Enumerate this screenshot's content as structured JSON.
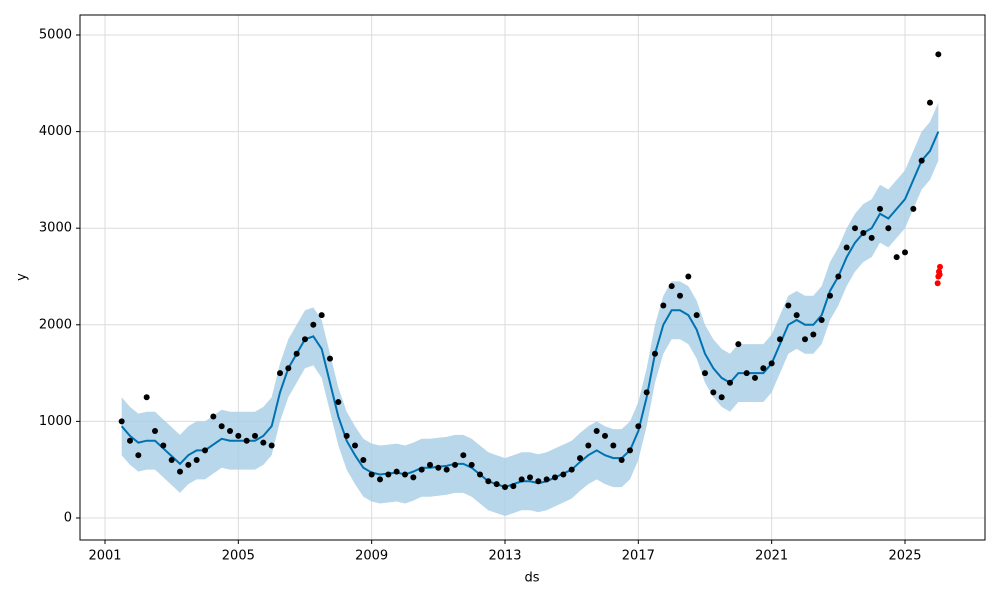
{
  "chart_data": {
    "type": "line",
    "x_label": "ds",
    "y_label": "y",
    "xlim": [
      2000.25,
      2027.4
    ],
    "ylim": [
      -228,
      5207
    ],
    "xticks": [
      2001,
      2005,
      2009,
      2013,
      2017,
      2021,
      2025
    ],
    "yticks": [
      0,
      1000,
      2000,
      3000,
      4000,
      5000
    ],
    "grid": true,
    "x": [
      2001.5,
      2001.75,
      2002,
      2002.25,
      2002.5,
      2002.75,
      2003,
      2003.25,
      2003.5,
      2003.75,
      2004,
      2004.25,
      2004.5,
      2004.75,
      2005,
      2005.25,
      2005.5,
      2005.75,
      2006,
      2006.25,
      2006.5,
      2006.75,
      2007,
      2007.25,
      2007.5,
      2007.75,
      2008,
      2008.25,
      2008.5,
      2008.75,
      2009,
      2009.25,
      2009.5,
      2009.75,
      2010,
      2010.25,
      2010.5,
      2010.75,
      2011,
      2011.25,
      2011.5,
      2011.75,
      2012,
      2012.25,
      2012.5,
      2012.75,
      2013,
      2013.25,
      2013.5,
      2013.75,
      2014,
      2014.25,
      2014.5,
      2014.75,
      2015,
      2015.25,
      2015.5,
      2015.75,
      2016,
      2016.25,
      2016.5,
      2016.75,
      2017,
      2017.25,
      2017.5,
      2017.75,
      2018,
      2018.25,
      2018.5,
      2018.75,
      2019,
      2019.25,
      2019.5,
      2019.75,
      2020,
      2020.25,
      2020.5,
      2020.75,
      2021,
      2021.25,
      2021.5,
      2021.75,
      2022,
      2022.25,
      2022.5,
      2022.75,
      2023,
      2023.25,
      2023.5,
      2023.75,
      2024,
      2024.25,
      2024.5,
      2024.75,
      2025,
      2025.25,
      2025.5,
      2025.75,
      2026
    ],
    "series": [
      {
        "style": "band",
        "color": "#a8cde6",
        "lower": [
          650,
          550,
          480,
          500,
          500,
          420,
          340,
          260,
          350,
          400,
          400,
          460,
          520,
          500,
          500,
          500,
          500,
          550,
          650,
          1000,
          1250,
          1400,
          1550,
          1580,
          1450,
          1100,
          750,
          500,
          350,
          220,
          170,
          150,
          160,
          170,
          150,
          180,
          220,
          220,
          230,
          240,
          260,
          260,
          220,
          150,
          80,
          50,
          20,
          50,
          80,
          80,
          60,
          80,
          120,
          160,
          200,
          280,
          350,
          400,
          350,
          320,
          320,
          400,
          600,
          950,
          1400,
          1700,
          1850,
          1850,
          1800,
          1650,
          1400,
          1250,
          1150,
          1100,
          1200,
          1200,
          1200,
          1200,
          1300,
          1500,
          1700,
          1750,
          1700,
          1700,
          1800,
          2050,
          2200,
          2400,
          2550,
          2650,
          2700,
          2850,
          2800,
          2900,
          3000,
          3200,
          3400,
          3500,
          3700
        ],
        "upper": [
          1250,
          1150,
          1080,
          1100,
          1100,
          1020,
          940,
          860,
          950,
          1000,
          1000,
          1060,
          1120,
          1100,
          1100,
          1100,
          1100,
          1150,
          1250,
          1600,
          1850,
          2000,
          2150,
          2180,
          2050,
          1700,
          1350,
          1100,
          950,
          820,
          770,
          750,
          760,
          770,
          750,
          780,
          820,
          820,
          830,
          840,
          860,
          860,
          820,
          750,
          680,
          650,
          620,
          650,
          680,
          680,
          660,
          680,
          720,
          760,
          800,
          880,
          950,
          1000,
          950,
          920,
          920,
          1000,
          1200,
          1550,
          2000,
          2300,
          2450,
          2450,
          2400,
          2250,
          2000,
          1850,
          1750,
          1700,
          1800,
          1800,
          1800,
          1800,
          1900,
          2100,
          2300,
          2350,
          2300,
          2300,
          2400,
          2650,
          2800,
          3000,
          3150,
          3250,
          3300,
          3450,
          3400,
          3500,
          3600,
          3800,
          4000,
          4100,
          4300
        ]
      },
      {
        "style": "line",
        "color": "#0072B2",
        "values": [
          950,
          850,
          780,
          800,
          800,
          720,
          640,
          560,
          650,
          700,
          700,
          760,
          820,
          800,
          800,
          800,
          800,
          850,
          950,
          1300,
          1550,
          1700,
          1850,
          1880,
          1750,
          1400,
          1050,
          800,
          650,
          520,
          470,
          450,
          460,
          470,
          450,
          480,
          520,
          520,
          530,
          540,
          560,
          560,
          520,
          450,
          380,
          350,
          320,
          350,
          380,
          380,
          360,
          380,
          420,
          460,
          500,
          580,
          650,
          700,
          650,
          620,
          620,
          700,
          900,
          1250,
          1700,
          2000,
          2150,
          2150,
          2100,
          1950,
          1700,
          1550,
          1450,
          1400,
          1500,
          1500,
          1500,
          1500,
          1600,
          1800,
          2000,
          2050,
          2000,
          2000,
          2100,
          2350,
          2500,
          2700,
          2850,
          2950,
          3000,
          3150,
          3100,
          3200,
          3300,
          3500,
          3700,
          3800,
          4000
        ]
      },
      {
        "style": "dots",
        "color": "#000000",
        "values": [
          1000,
          800,
          650,
          1250,
          900,
          750,
          600,
          480,
          550,
          600,
          700,
          1050,
          950,
          900,
          850,
          800,
          850,
          780,
          750,
          1500,
          1550,
          1700,
          1850,
          2000,
          2100,
          1650,
          1200,
          850,
          750,
          600,
          450,
          400,
          450,
          480,
          450,
          420,
          500,
          550,
          520,
          500,
          550,
          650,
          550,
          450,
          380,
          350,
          320,
          330,
          400,
          420,
          380,
          400,
          420,
          450,
          500,
          620,
          750,
          900,
          850,
          750,
          600,
          700,
          950,
          1300,
          1700,
          2200,
          2400,
          2300,
          2500,
          2100,
          1500,
          1300,
          1250,
          1400,
          1800,
          1500,
          1450,
          1550,
          1600,
          1850,
          2200,
          2100,
          1850,
          1900,
          2050,
          2300,
          2500,
          2800,
          3000,
          2950,
          2900,
          3200,
          3000,
          2700,
          2750,
          3200,
          3700,
          4300,
          4800
        ]
      },
      {
        "style": "dots",
        "color": "#ff0000",
        "x": [
          2025.98,
          2026.0,
          2026.02,
          2026.04,
          2026.05
        ],
        "values": [
          2430,
          2500,
          2550,
          2520,
          2600
        ]
      }
    ]
  }
}
